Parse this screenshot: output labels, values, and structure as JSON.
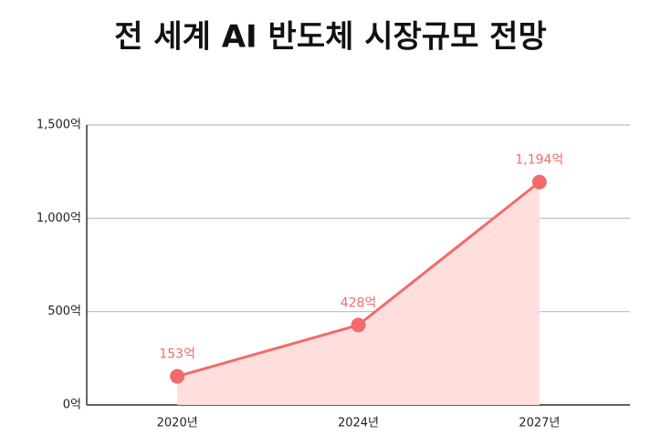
{
  "chart_data": {
    "type": "line",
    "title": "전 세계 AI 반도체 시장규모 전망",
    "categories": [
      "2020년",
      "2024년",
      "2027년"
    ],
    "values": [
      153,
      428,
      1194
    ],
    "value_labels": [
      "153억",
      "428억",
      "1,194억"
    ],
    "color": "#f26b6b",
    "area_color": "#ffdede",
    "ylim": [
      0,
      1500
    ],
    "yticks": [
      {
        "value": 0,
        "label": "0억"
      },
      {
        "value": 500,
        "label": "500억"
      },
      {
        "value": 1000,
        "label": "1,000억"
      },
      {
        "value": 1500,
        "label": "1,500억"
      }
    ],
    "grid": true
  }
}
